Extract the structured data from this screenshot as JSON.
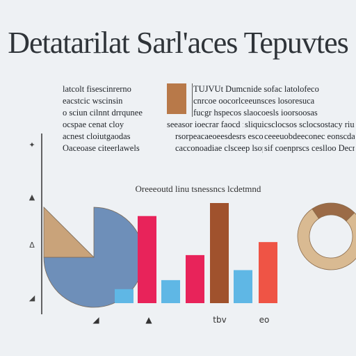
{
  "title": "Detatarilat Sarl'aces Tepuvtes",
  "paragraph": {
    "left_lines": [
      "latcolt fisescinrerno",
      "eacstcic wscinsin",
      "o sciun cilnnt drrqunee",
      "ocspae cenat cloy",
      "acnest cloiutgaodas",
      "Oaceoase citeerlawels"
    ],
    "right_lines": [
      "TUJVUt Dumcnide sofac latolofeco",
      "cnrcoe oocorlceeunsces losoresuca",
      "fucgr hspecos slaocoesls ioorsoosas",
      "sliquicsclocsos sclocsostacy riuoolacsoc",
      "ceeeuobdeeconec eonscdaddes ridlnaaa",
      "sif coenprscs ceslloo Decnocooor dbe"
    ],
    "mid_line_4": "seeasor ioecrar faocd for ocapecs ear",
    "mid_line_5": "rsorpeacaeoeesdesrs esconcaldrosso",
    "mid_line_6": "cacconoadiae clsceep lsopecros"
  },
  "chart_data": {
    "type": "bar",
    "title": "Oreeeoutd linu tsnessncs lcdetmnd",
    "ylim": [
      0,
      100
    ],
    "y_ticks": [
      "✦",
      "▲",
      "Δ",
      "◢"
    ],
    "bars": [
      {
        "value": 14,
        "color": "#5fb7e5"
      },
      {
        "value": 87,
        "color": "#e8235a"
      },
      {
        "value": 23,
        "color": "#5fb7e5"
      },
      {
        "value": 48,
        "color": "#e8235a"
      },
      {
        "value": 100,
        "color": "#a0522d"
      },
      {
        "value": 33,
        "color": "#5fb7e5"
      },
      {
        "value": 61,
        "color": "#ef5445"
      }
    ],
    "x_labels": [
      "◢",
      "▲",
      "tbv",
      "eo"
    ],
    "pie": {
      "values": [
        75,
        25
      ],
      "colors": [
        "#6e8fb9",
        "#c9a37a"
      ]
    },
    "donut": {
      "values": [
        22,
        78
      ],
      "colors": [
        "#9b6b47",
        "#d9ba92"
      ]
    }
  }
}
